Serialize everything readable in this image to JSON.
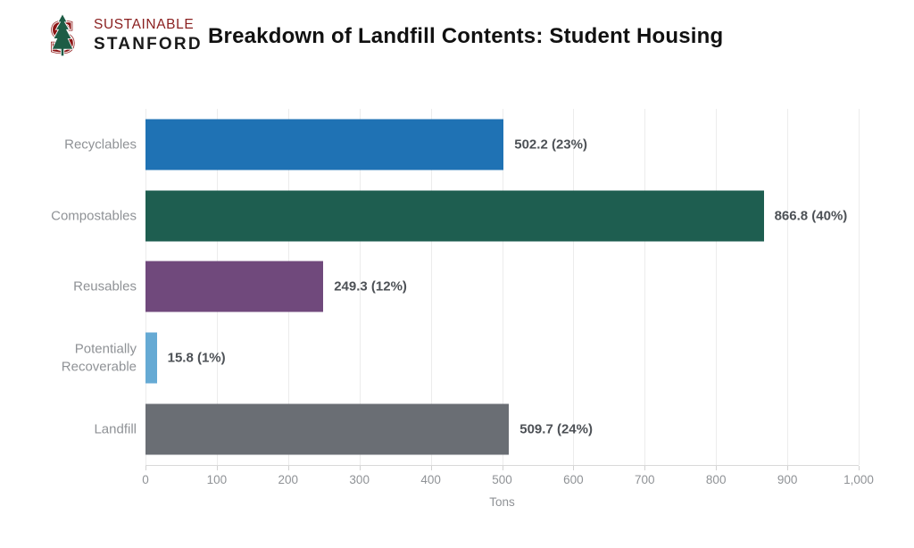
{
  "header": {
    "logo_line1": "SUSTAINABLE",
    "logo_line2": "STANFORD",
    "title": "Breakdown of Landfill Contents: Student Housing"
  },
  "colors": {
    "cardinal_red": "#8C1515",
    "logo_text_red": "#8A1F1F",
    "logo_tree_green": "#1D5C45",
    "title_text": "#111111",
    "category_label": "#8F9296",
    "value_label": "#4D5156",
    "tick_label": "#8F9296",
    "gridline": "#ECECEC",
    "axis_line": "#D9D9D9",
    "background": "#FFFFFF"
  },
  "chart_data": {
    "type": "bar",
    "orientation": "horizontal",
    "title": "Breakdown of Landfill Contents: Student Housing",
    "categories": [
      "Recyclables",
      "Compostables",
      "Reusables",
      "Potentially Recoverable",
      "Landfill"
    ],
    "values": [
      502.2,
      866.8,
      249.3,
      15.8,
      509.7
    ],
    "percentages": [
      23,
      40,
      12,
      1,
      24
    ],
    "value_labels": [
      "502.2 (23%)",
      "866.8 (40%)",
      "249.3 (12%)",
      "15.8 (1%)",
      "509.7 (24%)"
    ],
    "bar_colors": [
      "#1F72B4",
      "#1E5E50",
      "#70497C",
      "#66AAD4",
      "#6A6E74"
    ],
    "xlabel": "Tons",
    "ylabel": "",
    "xlim": [
      0,
      1000
    ],
    "x_ticks": [
      0,
      100,
      200,
      300,
      400,
      500,
      600,
      700,
      800,
      900,
      1000
    ],
    "x_tick_labels": [
      "0",
      "100",
      "200",
      "300",
      "400",
      "500",
      "600",
      "700",
      "800",
      "900",
      "1,000"
    ],
    "grid": "vertical-gridlines",
    "legend": "none"
  }
}
